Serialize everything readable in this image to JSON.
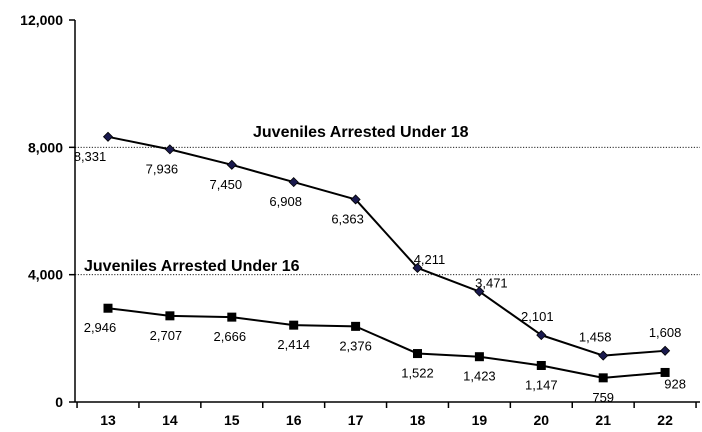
{
  "chart_data": {
    "type": "line",
    "x": [
      13,
      14,
      15,
      16,
      17,
      18,
      19,
      20,
      21,
      22
    ],
    "x_tick_labels": [
      "13",
      "14",
      "15",
      "16",
      "17",
      "18",
      "19",
      "20",
      "21",
      "22"
    ],
    "ylim": [
      0,
      12000
    ],
    "y_ticks": [
      0,
      4000,
      8000,
      12000
    ],
    "y_tick_labels": [
      "0",
      "4,000",
      "8,000",
      "12,000"
    ],
    "reference_lines": [
      8000,
      4000
    ],
    "grid": false,
    "legend": "none",
    "series": [
      {
        "name": "Juveniles Arrested Under 18",
        "marker": "diamond",
        "color": "#000000",
        "marker_color": "#1a1a4e",
        "values": [
          8331,
          7936,
          7450,
          6908,
          6363,
          4211,
          3471,
          2101,
          1458,
          1608
        ],
        "value_labels": [
          "8,331",
          "7,936",
          "7,450",
          "6,908",
          "6,363",
          "4,211",
          "3,471",
          "2,101",
          "1,458",
          "1,608"
        ]
      },
      {
        "name": "Juveniles Arrested Under 16",
        "marker": "square",
        "color": "#000000",
        "marker_color": "#000000",
        "values": [
          2946,
          2707,
          2666,
          2414,
          2376,
          1522,
          1423,
          1147,
          759,
          928
        ],
        "value_labels": [
          "2,946",
          "2,707",
          "2,666",
          "2,414",
          "2,376",
          "1,522",
          "1,423",
          "1,147",
          "759",
          "928"
        ]
      }
    ]
  }
}
